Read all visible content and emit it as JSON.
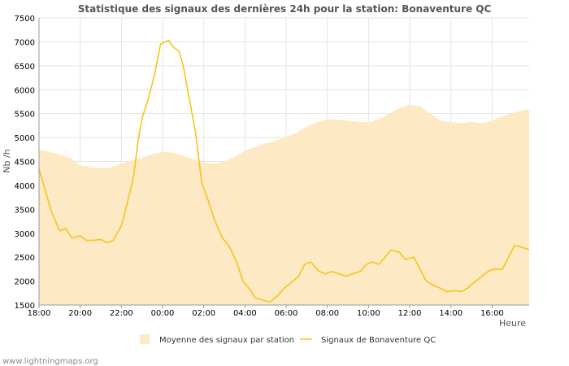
{
  "chart_data": {
    "type": "area",
    "title": "Statistique des signaux des dernières 24h pour la station: Bonaventure QC",
    "xlabel": "Heure",
    "ylabel": "Nb /h",
    "ylim": [
      1500,
      7500
    ],
    "yticks": [
      1500,
      2000,
      2500,
      3000,
      3500,
      4000,
      4500,
      5000,
      5500,
      6000,
      6500,
      7000,
      7500
    ],
    "xlim": [
      0,
      23.8
    ],
    "xticks": [
      {
        "x": 0,
        "label": "18:00"
      },
      {
        "x": 2,
        "label": "20:00"
      },
      {
        "x": 4,
        "label": "22:00"
      },
      {
        "x": 6,
        "label": "00:00"
      },
      {
        "x": 8,
        "label": "02:00"
      },
      {
        "x": 10,
        "label": "04:00"
      },
      {
        "x": 12,
        "label": "06:00"
      },
      {
        "x": 14,
        "label": "08:00"
      },
      {
        "x": 16,
        "label": "10:00"
      },
      {
        "x": 18,
        "label": "12:00"
      },
      {
        "x": 20,
        "label": "14:00"
      },
      {
        "x": 22,
        "label": "16:00"
      }
    ],
    "grid": true,
    "legend_position": "bottom",
    "series": [
      {
        "name": "Moyenne des signaux par station",
        "kind": "area",
        "color": "#fde9c4",
        "x": [
          0,
          0.5,
          1,
          1.5,
          2,
          2.5,
          3,
          3.5,
          4,
          4.5,
          5,
          5.5,
          6,
          6.5,
          7,
          7.5,
          8,
          8.5,
          9,
          9.5,
          10,
          10.5,
          11,
          11.5,
          12,
          12.5,
          13,
          13.5,
          14,
          14.5,
          15,
          15.5,
          16,
          16.5,
          17,
          17.5,
          18,
          18.5,
          19,
          19.5,
          20,
          20.5,
          21,
          21.5,
          22,
          22.5,
          23,
          23.5,
          23.8
        ],
        "values": [
          4750,
          4700,
          4650,
          4580,
          4420,
          4380,
          4360,
          4380,
          4450,
          4520,
          4580,
          4650,
          4700,
          4680,
          4620,
          4550,
          4480,
          4450,
          4500,
          4600,
          4720,
          4800,
          4880,
          4930,
          5020,
          5100,
          5230,
          5320,
          5380,
          5380,
          5350,
          5330,
          5320,
          5380,
          5500,
          5620,
          5680,
          5650,
          5500,
          5350,
          5320,
          5300,
          5330,
          5300,
          5350,
          5450,
          5500,
          5580,
          5580
        ]
      },
      {
        "name": "Signaux de Bonaventure QC",
        "kind": "line",
        "color": "#f5c518",
        "x": [
          0,
          0.3,
          0.6,
          1,
          1.3,
          1.6,
          2,
          2.3,
          2.6,
          3,
          3.3,
          3.6,
          4,
          4.3,
          4.6,
          4.8,
          5,
          5.3,
          5.6,
          5.9,
          6.3,
          6.5,
          6.8,
          7,
          7.3,
          7.6,
          7.9,
          8.2,
          8.5,
          8.9,
          9.2,
          9.6,
          9.9,
          10.2,
          10.5,
          10.9,
          11.2,
          11.6,
          11.9,
          12.2,
          12.6,
          12.9,
          13.2,
          13.6,
          13.9,
          14.2,
          14.6,
          14.9,
          15.2,
          15.6,
          15.9,
          16.2,
          16.5,
          16.8,
          17.1,
          17.5,
          17.8,
          18.2,
          18.5,
          18.8,
          19.2,
          19.5,
          19.8,
          20.2,
          20.5,
          20.8,
          21.2,
          21.5,
          21.8,
          22.1,
          22.5,
          22.8,
          23.1,
          23.5,
          23.8
        ],
        "values": [
          4350,
          3900,
          3450,
          3050,
          3100,
          2900,
          2950,
          2850,
          2850,
          2870,
          2800,
          2850,
          3150,
          3650,
          4200,
          4900,
          5400,
          5800,
          6300,
          6950,
          7030,
          6900,
          6800,
          6500,
          5800,
          5100,
          4050,
          3700,
          3300,
          2900,
          2750,
          2400,
          2000,
          1850,
          1650,
          1600,
          1560,
          1700,
          1850,
          1950,
          2100,
          2350,
          2400,
          2200,
          2150,
          2200,
          2150,
          2100,
          2150,
          2200,
          2350,
          2400,
          2350,
          2500,
          2650,
          2600,
          2450,
          2500,
          2250,
          2000,
          1900,
          1850,
          1780,
          1800,
          1780,
          1850,
          2000,
          2100,
          2200,
          2250,
          2250,
          2500,
          2750,
          2700,
          2650
        ]
      }
    ]
  },
  "footer": {
    "source": "www.lightningmaps.org"
  }
}
